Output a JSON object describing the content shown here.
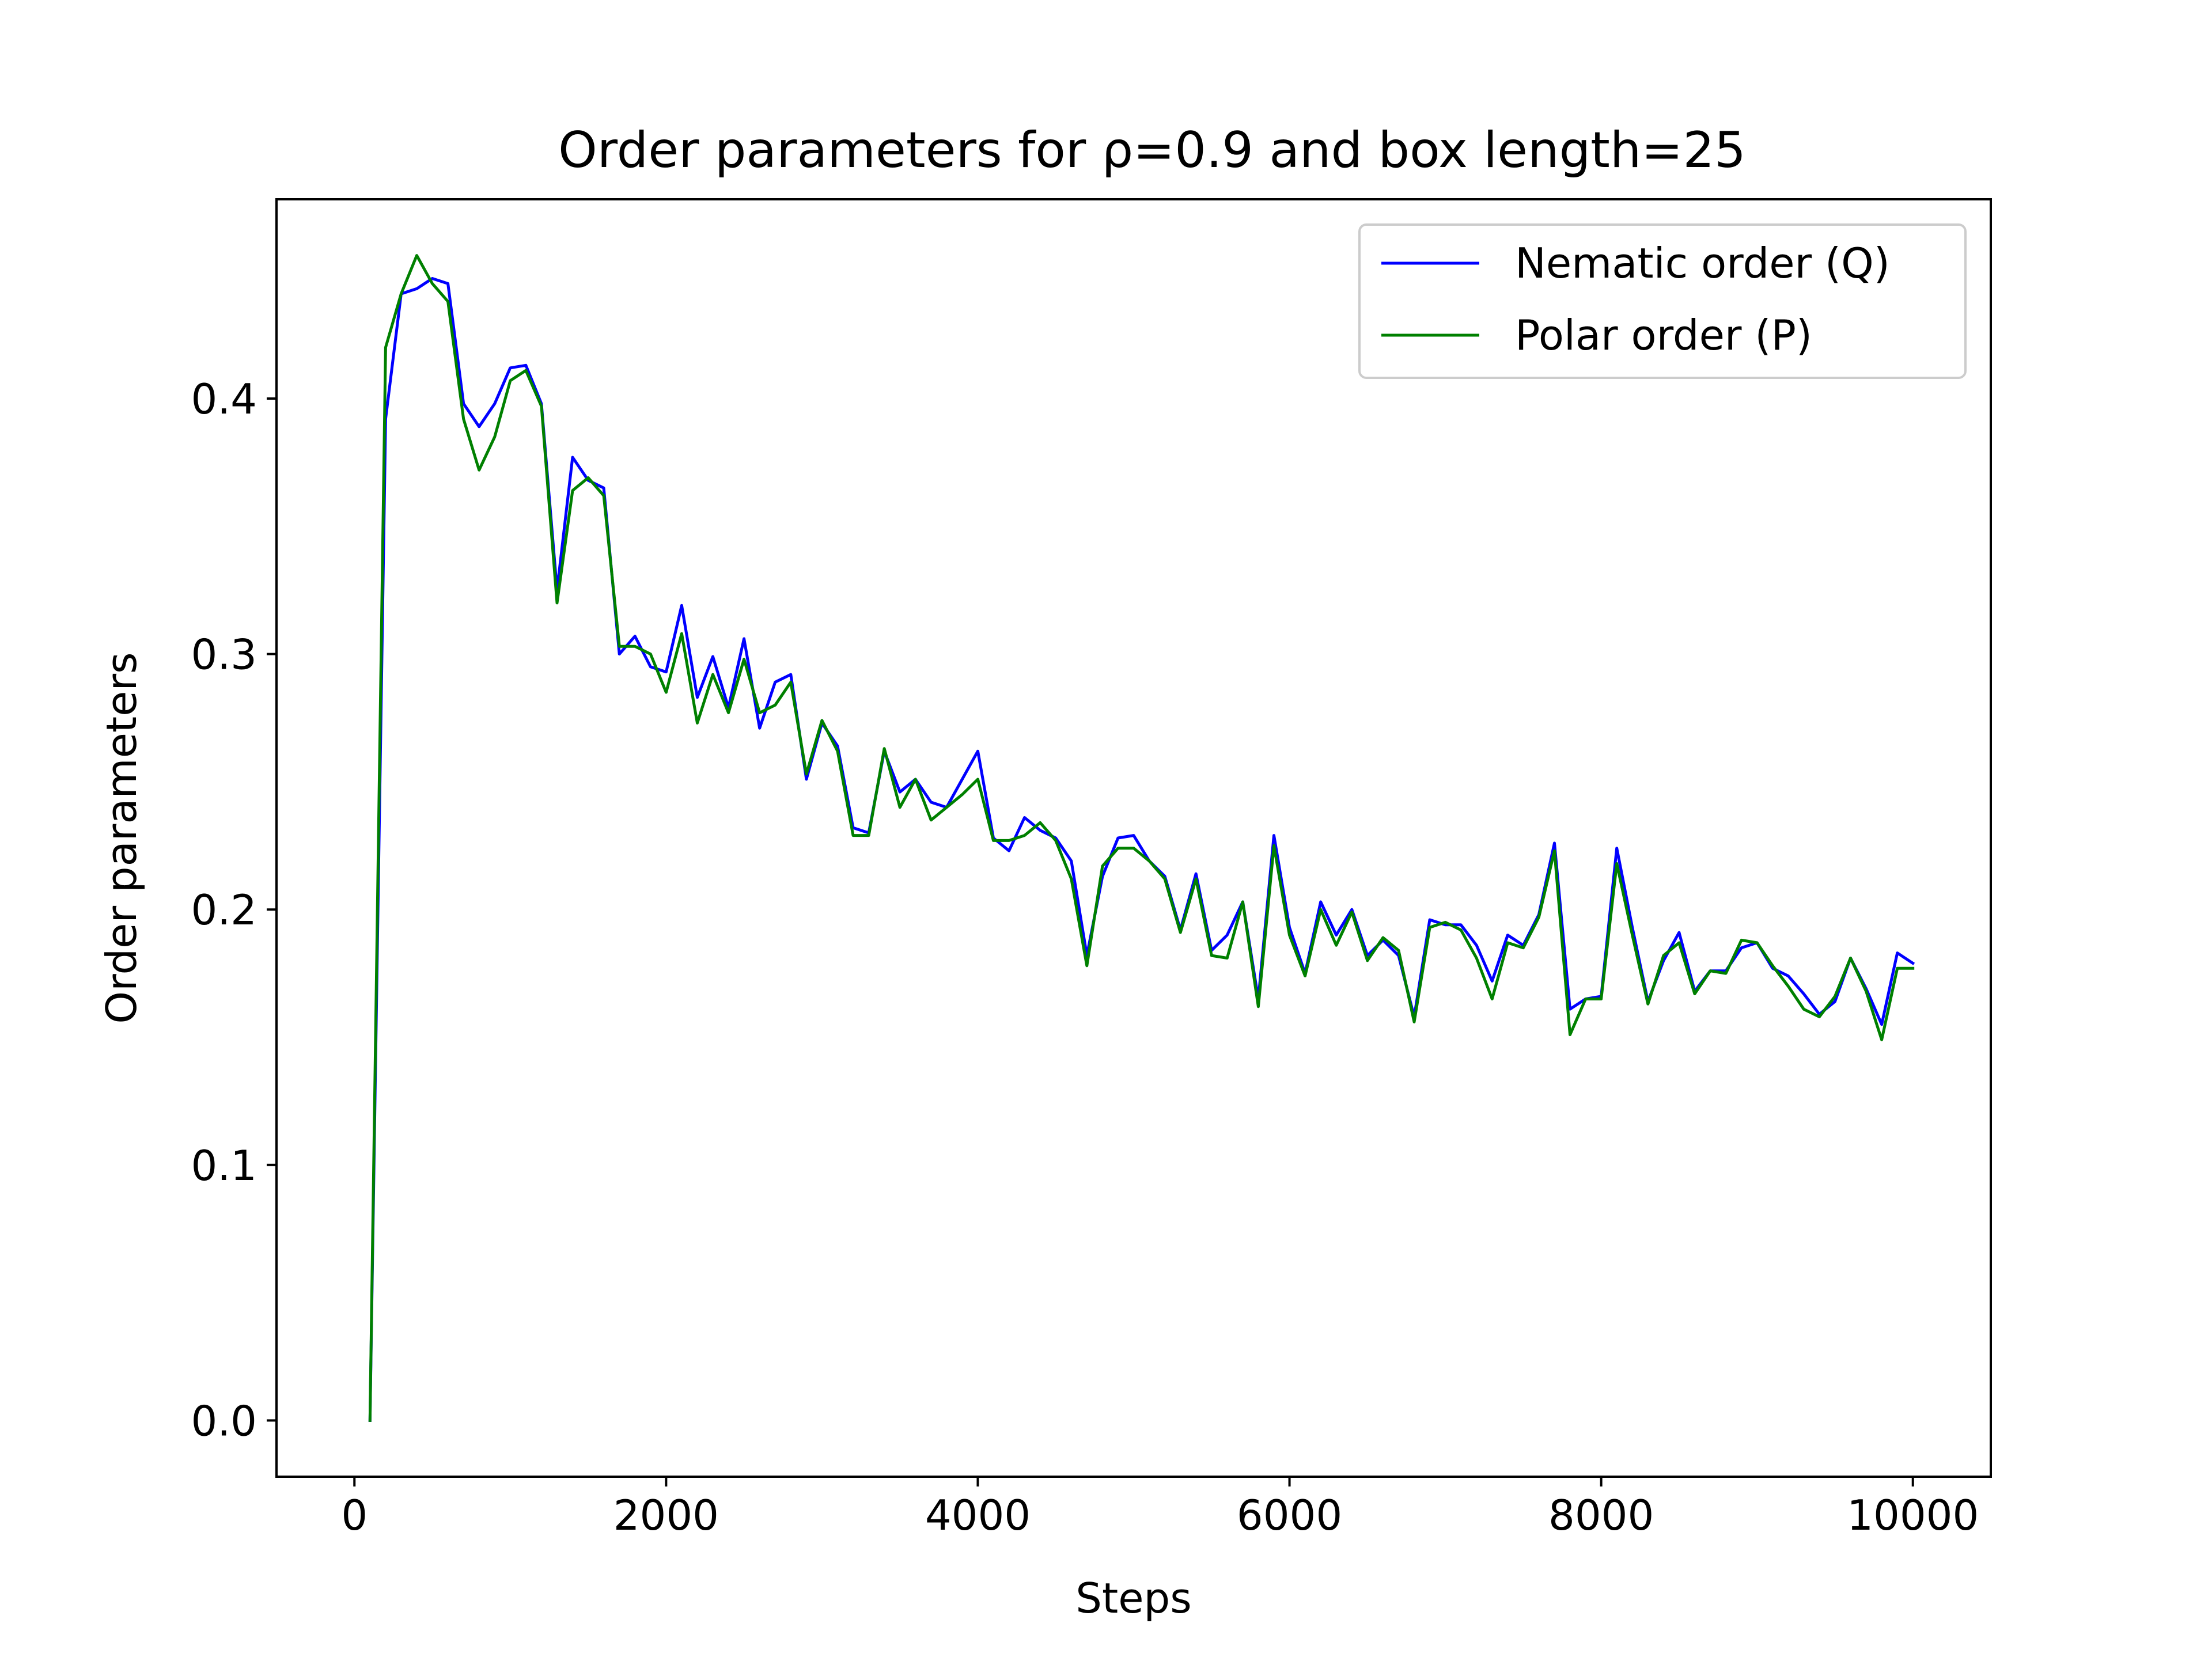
{
  "chart_data": {
    "type": "line",
    "title": "Order parameters for ρ=0.9 and box length=25",
    "xlabel": "Steps",
    "ylabel": "Order parameters",
    "xlim": [
      -500,
      10500
    ],
    "ylim": [
      -0.022,
      0.478
    ],
    "xticks": [
      0,
      2000,
      4000,
      6000,
      8000,
      10000
    ],
    "xtick_labels": [
      "0",
      "2000",
      "4000",
      "6000",
      "8000",
      "10000"
    ],
    "yticks": [
      0.0,
      0.1,
      0.2,
      0.3,
      0.4
    ],
    "ytick_labels": [
      "0.0",
      "0.1",
      "0.2",
      "0.3",
      "0.4"
    ],
    "grid": false,
    "legend_position": "top-right",
    "x": [
      100,
      200,
      300,
      400,
      500,
      600,
      700,
      800,
      900,
      1000,
      1100,
      1200,
      1300,
      1400,
      1500,
      1600,
      1700,
      1800,
      1900,
      2000,
      2100,
      2200,
      2300,
      2400,
      2500,
      2600,
      2700,
      2800,
      2900,
      3000,
      3100,
      3200,
      3300,
      3400,
      3500,
      3600,
      3700,
      3800,
      3900,
      4000,
      4100,
      4200,
      4300,
      4400,
      4500,
      4600,
      4700,
      4800,
      4900,
      5000,
      5100,
      5200,
      5300,
      5400,
      5500,
      5600,
      5700,
      5800,
      5900,
      6000,
      6100,
      6200,
      6300,
      6400,
      6500,
      6600,
      6700,
      6800,
      6900,
      7000,
      7100,
      7200,
      7300,
      7400,
      7500,
      7600,
      7700,
      7800,
      7900,
      8000,
      8100,
      8200,
      8300,
      8400,
      8500,
      8600,
      8700,
      8800,
      8900,
      9000,
      9100,
      9200,
      9300,
      9400,
      9500,
      9600,
      9700,
      9800,
      9900,
      10000
    ],
    "series": [
      {
        "name": "Nematic order (Q)",
        "color": "#0000ff",
        "values": [
          0.0,
          0.392,
          0.441,
          0.443,
          0.447,
          0.445,
          0.398,
          0.389,
          0.398,
          0.412,
          0.413,
          0.398,
          0.325,
          0.377,
          0.368,
          0.365,
          0.3,
          0.307,
          0.295,
          0.293,
          0.319,
          0.283,
          0.299,
          0.279,
          0.306,
          0.271,
          0.289,
          0.292,
          0.251,
          0.273,
          0.264,
          0.232,
          0.23,
          0.262,
          0.246,
          0.251,
          0.242,
          0.24,
          0.251,
          0.262,
          0.228,
          0.223,
          0.236,
          0.231,
          0.228,
          0.219,
          0.182,
          0.213,
          0.228,
          0.229,
          0.219,
          0.213,
          0.192,
          0.214,
          0.184,
          0.19,
          0.203,
          0.165,
          0.229,
          0.193,
          0.175,
          0.203,
          0.19,
          0.2,
          0.182,
          0.188,
          0.182,
          0.158,
          0.196,
          0.194,
          0.194,
          0.186,
          0.172,
          0.19,
          0.186,
          0.198,
          0.226,
          0.161,
          0.165,
          0.166,
          0.224,
          0.193,
          0.164,
          0.18,
          0.191,
          0.168,
          0.176,
          0.176,
          0.185,
          0.187,
          0.177,
          0.174,
          0.167,
          0.159,
          0.164,
          0.181,
          0.169,
          0.155,
          0.183,
          0.179
        ]
      },
      {
        "name": "Polar order (P)",
        "color": "#008000",
        "values": [
          0.0,
          0.42,
          0.441,
          0.456,
          0.445,
          0.438,
          0.392,
          0.372,
          0.385,
          0.407,
          0.411,
          0.397,
          0.32,
          0.364,
          0.369,
          0.362,
          0.303,
          0.303,
          0.3,
          0.285,
          0.308,
          0.273,
          0.292,
          0.277,
          0.298,
          0.277,
          0.28,
          0.289,
          0.253,
          0.274,
          0.262,
          0.229,
          0.229,
          0.263,
          0.24,
          0.251,
          0.235,
          0.24,
          0.245,
          0.251,
          0.227,
          0.227,
          0.229,
          0.234,
          0.227,
          0.212,
          0.178,
          0.217,
          0.224,
          0.224,
          0.219,
          0.212,
          0.191,
          0.212,
          0.182,
          0.181,
          0.203,
          0.162,
          0.225,
          0.19,
          0.174,
          0.2,
          0.186,
          0.199,
          0.18,
          0.189,
          0.184,
          0.156,
          0.193,
          0.195,
          0.192,
          0.181,
          0.165,
          0.187,
          0.185,
          0.197,
          0.223,
          0.151,
          0.165,
          0.165,
          0.218,
          0.19,
          0.163,
          0.182,
          0.187,
          0.167,
          0.176,
          0.175,
          0.188,
          0.187,
          0.178,
          0.17,
          0.161,
          0.158,
          0.166,
          0.181,
          0.168,
          0.149,
          0.177,
          0.177
        ]
      }
    ]
  },
  "colors": {
    "axes": "#000000",
    "legend_border": "#cccccc",
    "background": "#ffffff"
  }
}
